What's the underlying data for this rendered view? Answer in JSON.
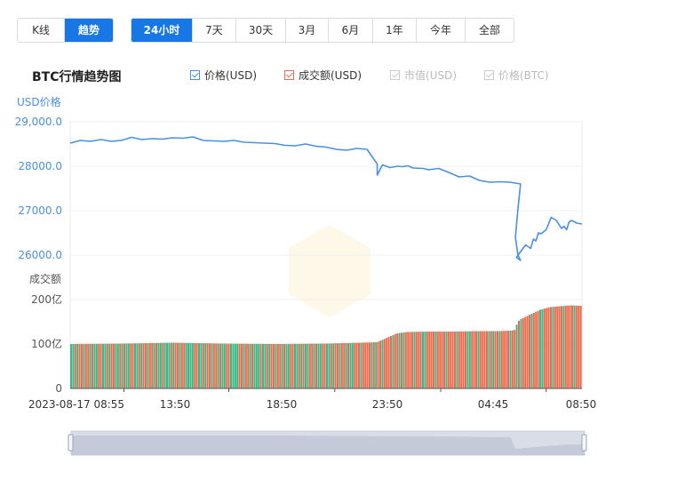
{
  "view_tabs": [
    {
      "label": "K线",
      "active": false
    },
    {
      "label": "趋势",
      "active": true
    }
  ],
  "range_tabs": [
    {
      "label": "24小时",
      "active": true
    },
    {
      "label": "7天",
      "active": false
    },
    {
      "label": "30天",
      "active": false
    },
    {
      "label": "3月",
      "active": false
    },
    {
      "label": "6月",
      "active": false
    },
    {
      "label": "1年",
      "active": false
    },
    {
      "label": "今年",
      "active": false
    },
    {
      "label": "全部",
      "active": false
    }
  ],
  "title": "BTC行情趋势图",
  "legend": [
    {
      "label": "价格(USD)",
      "checked": true,
      "color": "#4a90e2",
      "enabled": true
    },
    {
      "label": "成交额(USD)",
      "checked": true,
      "color": "#ef6a4f",
      "enabled": true
    },
    {
      "label": "市值(USD)",
      "checked": true,
      "color": "#cccccc",
      "enabled": false
    },
    {
      "label": "价格(BTC)",
      "checked": true,
      "color": "#cccccc",
      "enabled": false
    }
  ],
  "chart_data": {
    "type": "line",
    "price_axis_label": "USD价格",
    "volume_axis_label": "成交额",
    "price_ticks": [
      "29,000.0",
      "28000.0",
      "27000.0",
      "26000.0"
    ],
    "volume_ticks": [
      "200亿",
      "100亿",
      "0"
    ],
    "x_tick_labels": [
      "2023-08-17 08:55",
      "13:50",
      "18:50",
      "23:50",
      "04:45",
      "08:50"
    ],
    "price_ylim": [
      25000,
      29000
    ],
    "volume_ylim": [
      0,
      200
    ],
    "colors": {
      "price": "#4a90e2",
      "volume_up": "#3cb887",
      "volume_down": "#ef6a4f",
      "grid": "#eeeeee"
    },
    "price_series": {
      "name": "价格(USD)",
      "x": [
        0,
        0.02,
        0.04,
        0.06,
        0.08,
        0.1,
        0.12,
        0.14,
        0.16,
        0.18,
        0.2,
        0.22,
        0.24,
        0.26,
        0.28,
        0.3,
        0.32,
        0.34,
        0.36,
        0.38,
        0.4,
        0.42,
        0.44,
        0.46,
        0.48,
        0.5,
        0.52,
        0.54,
        0.56,
        0.58,
        0.6,
        0.6,
        0.61,
        0.625,
        0.64,
        0.65,
        0.66,
        0.67,
        0.69,
        0.7,
        0.72,
        0.74,
        0.76,
        0.78,
        0.8,
        0.82,
        0.84,
        0.86,
        0.87,
        0.88,
        0.875,
        0.87,
        0.875,
        0.88,
        0.872,
        0.89,
        0.9,
        0.905,
        0.91,
        0.915,
        0.92,
        0.93,
        0.94,
        0.95,
        0.96,
        0.965,
        0.97,
        0.975,
        0.98,
        0.99,
        1.0
      ],
      "values": [
        28520,
        28580,
        28560,
        28600,
        28560,
        28580,
        28650,
        28600,
        28620,
        28610,
        28640,
        28630,
        28660,
        28580,
        28570,
        28560,
        28580,
        28540,
        28530,
        28520,
        28510,
        28470,
        28460,
        28500,
        28450,
        28430,
        28380,
        28360,
        28400,
        28380,
        28050,
        27800,
        28030,
        27970,
        28000,
        27990,
        28010,
        27960,
        27950,
        27920,
        27950,
        27860,
        27760,
        27780,
        27680,
        27640,
        27650,
        27640,
        27620,
        27600,
        27050,
        26400,
        26000,
        25880,
        25950,
        26230,
        26150,
        26360,
        26320,
        26500,
        26480,
        26570,
        26850,
        26780,
        26600,
        26650,
        26570,
        26750,
        26780,
        26720,
        26700
      ]
    },
    "volume_series": {
      "name": "成交额(USD)",
      "x": [
        0,
        0.1,
        0.2,
        0.3,
        0.4,
        0.5,
        0.6,
        0.62,
        0.64,
        0.66,
        0.7,
        0.75,
        0.8,
        0.82,
        0.84,
        0.86,
        0.87,
        0.875,
        0.88,
        0.89,
        0.9,
        0.91,
        0.92,
        0.93,
        0.94,
        0.96,
        0.98,
        1.0
      ],
      "values": [
        100,
        101,
        103,
        101,
        100,
        101,
        104,
        114,
        124,
        127,
        128,
        128,
        129,
        129,
        129,
        130,
        131,
        145,
        155,
        160,
        166,
        171,
        177,
        180,
        183,
        185,
        187,
        186
      ]
    }
  },
  "navigator": {
    "label": ""
  }
}
